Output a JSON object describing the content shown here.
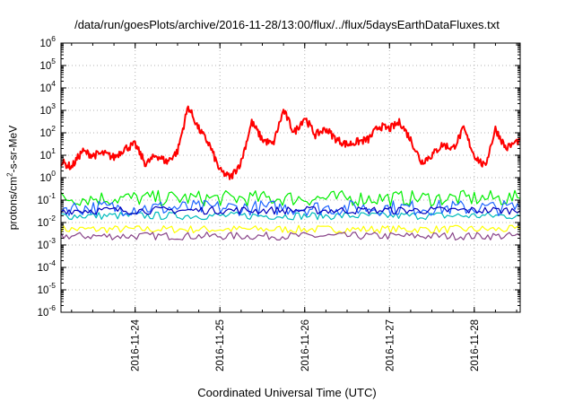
{
  "chart_data": {
    "type": "line",
    "title": "/data/run/goesPlots/archive/2016-11-28/13:00/flux/../flux/5daysEarthDataFluxes.txt",
    "xlabel": "Coordinated Universal Time (UTC)",
    "ylabel": {
      "base": "protons/cm",
      "sup": "2",
      "rest": "-s-sr-MeV"
    },
    "x_range": [
      "2016-11-23T03:00",
      "2016-11-28T13:00"
    ],
    "x_ticks": [
      "2016-11-24",
      "2016-11-25",
      "2016-11-26",
      "2016-11-27",
      "2016-11-28"
    ],
    "y_scale": "log",
    "ylim": [
      1e-06,
      1000000.0
    ],
    "y_ticks": [
      {
        "base": "10",
        "exp": "-6"
      },
      {
        "base": "10",
        "exp": "-5"
      },
      {
        "base": "10",
        "exp": "-4"
      },
      {
        "base": "10",
        "exp": "-3"
      },
      {
        "base": "10",
        "exp": "-2"
      },
      {
        "base": "10",
        "exp": "-1"
      },
      {
        "base": "10",
        "exp": "0"
      },
      {
        "base": "10",
        "exp": "1"
      },
      {
        "base": "10",
        "exp": "2"
      },
      {
        "base": "10",
        "exp": "3"
      },
      {
        "base": "10",
        "exp": "4"
      },
      {
        "base": "10",
        "exp": "5"
      },
      {
        "base": "10",
        "exp": "6"
      }
    ],
    "grid": true,
    "legend": "none",
    "series": [
      {
        "color": "#ff0000",
        "x": [
          "2016-11-23T03:00",
          "2016-11-23T06:00",
          "2016-11-23T09:00",
          "2016-11-23T12:00",
          "2016-11-23T15:00",
          "2016-11-23T18:00",
          "2016-11-23T21:00",
          "2016-11-24T00:00",
          "2016-11-24T03:00",
          "2016-11-24T06:00",
          "2016-11-24T09:00",
          "2016-11-24T12:00",
          "2016-11-24T15:00",
          "2016-11-24T18:00",
          "2016-11-24T21:00",
          "2016-11-25T00:00",
          "2016-11-25T03:00",
          "2016-11-25T06:00",
          "2016-11-25T09:00",
          "2016-11-25T12:00",
          "2016-11-25T15:00",
          "2016-11-25T18:00",
          "2016-11-25T21:00",
          "2016-11-26T00:00",
          "2016-11-26T03:00",
          "2016-11-26T06:00",
          "2016-11-26T09:00",
          "2016-11-26T12:00",
          "2016-11-26T15:00",
          "2016-11-26T18:00",
          "2016-11-26T21:00",
          "2016-11-27T00:00",
          "2016-11-27T03:00",
          "2016-11-27T06:00",
          "2016-11-27T09:00",
          "2016-11-27T12:00",
          "2016-11-27T15:00",
          "2016-11-27T18:00",
          "2016-11-27T21:00",
          "2016-11-28T00:00",
          "2016-11-28T03:00",
          "2016-11-28T06:00",
          "2016-11-28T09:00",
          "2016-11-28T13:00"
        ],
        "values": [
          5,
          3,
          15,
          10,
          12,
          8,
          20,
          30,
          4,
          10,
          5,
          15,
          1500,
          150,
          30,
          2,
          1,
          5,
          300,
          50,
          30,
          1000,
          100,
          500,
          80,
          150,
          50,
          30,
          40,
          50,
          200,
          150,
          300,
          50,
          5,
          10,
          30,
          20,
          150,
          10,
          3,
          150,
          20,
          50
        ]
      },
      {
        "color": "#00ee00",
        "x": [
          "2016-11-23T03:00",
          "2016-11-28T13:00"
        ],
        "values": [
          0.12,
          0.12
        ]
      },
      {
        "color": "#00bbbb",
        "x": [
          "2016-11-23T03:00",
          "2016-11-28T13:00"
        ],
        "values": [
          0.02,
          0.02
        ]
      },
      {
        "color": "#1e64ff",
        "x": [
          "2016-11-23T03:00",
          "2016-11-28T13:00"
        ],
        "values": [
          0.045,
          0.045
        ]
      },
      {
        "color": "#0000bb",
        "x": [
          "2016-11-23T03:00",
          "2016-11-28T13:00"
        ],
        "values": [
          0.035,
          0.035
        ]
      },
      {
        "color": "#ffff00",
        "x": [
          "2016-11-23T03:00",
          "2016-11-28T13:00"
        ],
        "values": [
          0.005,
          0.005
        ]
      },
      {
        "color": "#884488",
        "x": [
          "2016-11-23T03:00",
          "2016-11-28T13:00"
        ],
        "values": [
          0.0025,
          0.0025
        ]
      }
    ]
  }
}
